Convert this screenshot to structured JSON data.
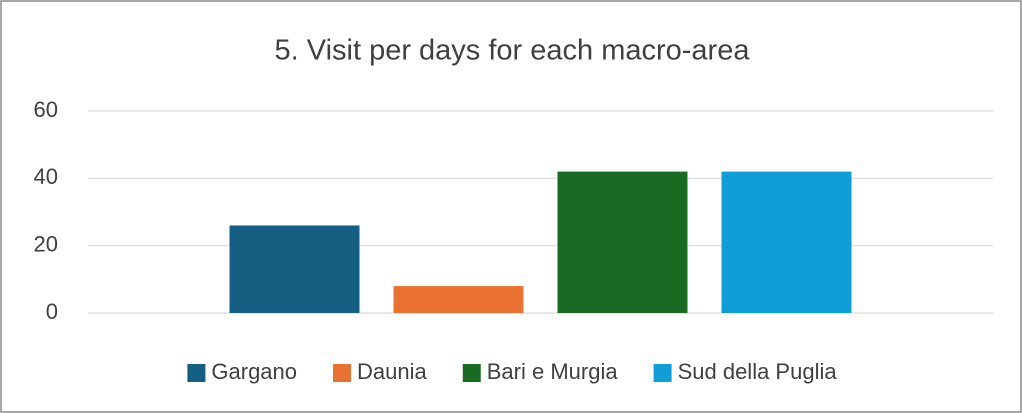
{
  "chart_data": {
    "type": "bar",
    "title": "5. Visit per days for each macro-area",
    "categories": [
      null
    ],
    "series": [
      {
        "name": "Gargano",
        "color": "#156082",
        "values": [
          26
        ]
      },
      {
        "name": "Daunia",
        "color": "#e97132",
        "values": [
          8
        ]
      },
      {
        "name": "Bari e Murgia",
        "color": "#196b24",
        "values": [
          42
        ]
      },
      {
        "name": "Sud della Puglia",
        "color": "#0f9ed5",
        "values": [
          42
        ]
      }
    ],
    "ylim": [
      0,
      60
    ],
    "yticks": [
      0,
      20,
      40,
      60
    ],
    "grid": true,
    "legend": "bottom"
  }
}
